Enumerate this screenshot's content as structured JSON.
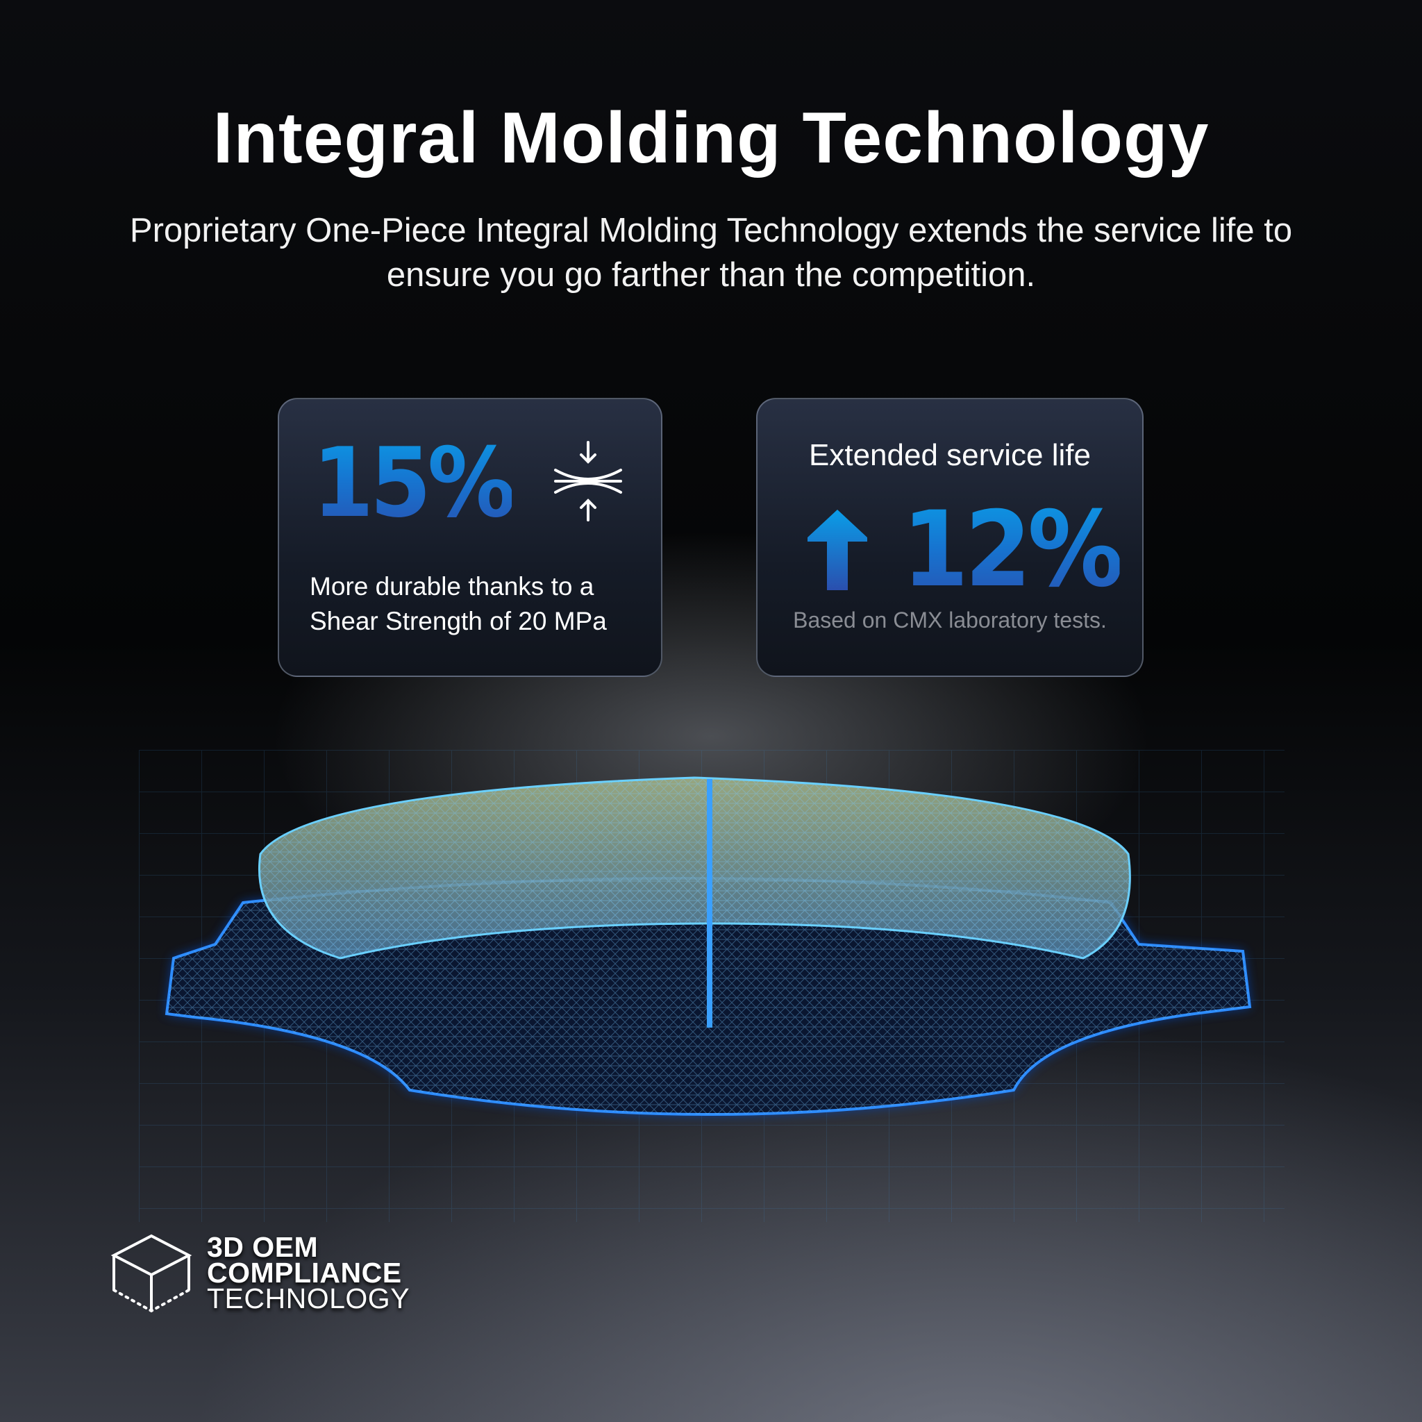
{
  "header": {
    "title": "Integral Molding Technology",
    "subtitle": "Proprietary One-Piece Integral Molding Technology extends the service life to ensure you go farther than the competition."
  },
  "cards": [
    {
      "value": "15%",
      "icon": "compression-arrows-icon",
      "description_line1": "More durable thanks to a",
      "description_line2": "Shear Strength of 20 MPa"
    },
    {
      "heading": "Extended service life",
      "icon": "arrow-up-icon",
      "value": "12%",
      "note": "Based on CMX laboratory tests."
    }
  ],
  "logo": {
    "icon": "cube-icon",
    "line1": "3D OEM",
    "line2": "COMPLIANCE",
    "line3": "TECHNOLOGY"
  },
  "colors": {
    "accent_blue": "#0a9ee8",
    "deep_blue": "#2a4fae",
    "background": "#050608"
  }
}
